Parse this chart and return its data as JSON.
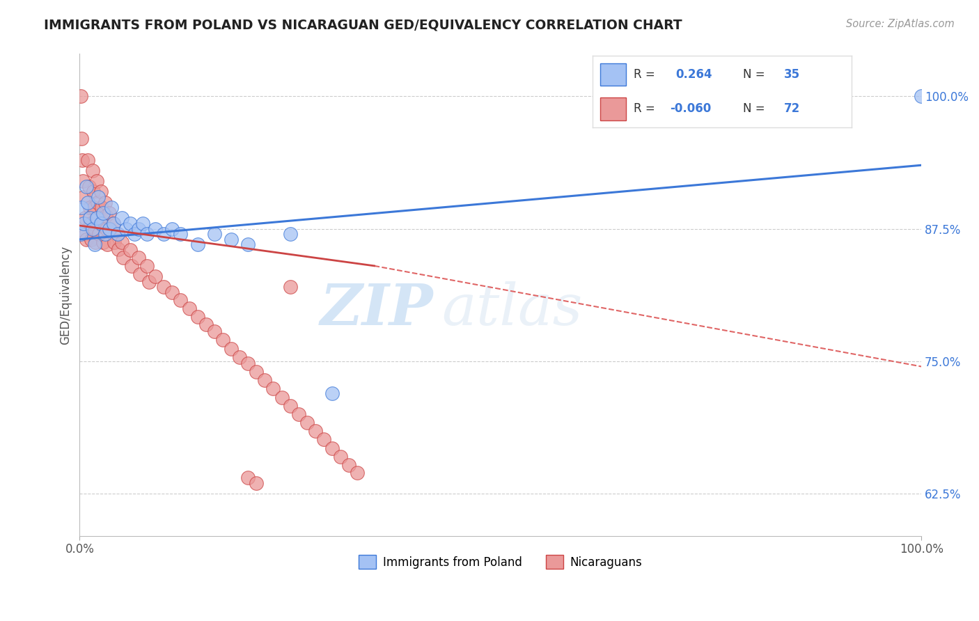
{
  "title": "IMMIGRANTS FROM POLAND VS NICARAGUAN GED/EQUIVALENCY CORRELATION CHART",
  "source_text": "Source: ZipAtlas.com",
  "ylabel": "GED/Equivalency",
  "color_blue": "#a4c2f4",
  "color_pink": "#ea9999",
  "color_blue_dark": "#3c78d8",
  "color_pink_dark": "#cc4444",
  "color_dashed": "#e06666",
  "watermark_zip": "ZIP",
  "watermark_atlas": "atlas",
  "ytick_labels": [
    "62.5%",
    "75.0%",
    "87.5%",
    "100.0%"
  ],
  "ytick_vals": [
    0.625,
    0.75,
    0.875,
    1.0
  ],
  "xtick_labels": [
    "0.0%",
    "100.0%"
  ],
  "xtick_vals": [
    0.0,
    1.0
  ],
  "ymin": 0.585,
  "ymax": 1.04,
  "xmin": 0.0,
  "xmax": 1.0,
  "blue_x": [
    0.001,
    0.002,
    0.005,
    0.008,
    0.01,
    0.012,
    0.015,
    0.018,
    0.02,
    0.022,
    0.025,
    0.028,
    0.03,
    0.035,
    0.038,
    0.04,
    0.045,
    0.05,
    0.055,
    0.06,
    0.065,
    0.07,
    0.075,
    0.08,
    0.09,
    0.1,
    0.11,
    0.12,
    0.14,
    0.16,
    0.18,
    0.2,
    0.25,
    0.3,
    1.0
  ],
  "blue_y": [
    0.87,
    0.895,
    0.88,
    0.915,
    0.9,
    0.885,
    0.875,
    0.86,
    0.885,
    0.905,
    0.88,
    0.89,
    0.87,
    0.875,
    0.895,
    0.88,
    0.87,
    0.885,
    0.875,
    0.88,
    0.87,
    0.875,
    0.88,
    0.87,
    0.875,
    0.87,
    0.875,
    0.87,
    0.86,
    0.87,
    0.865,
    0.86,
    0.87,
    0.72,
    1.0
  ],
  "pink_x": [
    0.001,
    0.002,
    0.003,
    0.004,
    0.005,
    0.006,
    0.007,
    0.008,
    0.01,
    0.011,
    0.012,
    0.013,
    0.014,
    0.015,
    0.016,
    0.017,
    0.018,
    0.019,
    0.02,
    0.021,
    0.022,
    0.023,
    0.025,
    0.026,
    0.027,
    0.028,
    0.03,
    0.031,
    0.032,
    0.033,
    0.035,
    0.036,
    0.04,
    0.041,
    0.045,
    0.046,
    0.05,
    0.052,
    0.06,
    0.062,
    0.07,
    0.072,
    0.08,
    0.082,
    0.09,
    0.1,
    0.11,
    0.12,
    0.13,
    0.14,
    0.15,
    0.16,
    0.17,
    0.18,
    0.19,
    0.2,
    0.21,
    0.22,
    0.23,
    0.24,
    0.25,
    0.26,
    0.27,
    0.28,
    0.29,
    0.25,
    0.3,
    0.31,
    0.32,
    0.33,
    0.2,
    0.21
  ],
  "pink_y": [
    1.0,
    0.96,
    0.94,
    0.92,
    0.905,
    0.885,
    0.87,
    0.865,
    0.94,
    0.915,
    0.895,
    0.88,
    0.865,
    0.93,
    0.91,
    0.895,
    0.875,
    0.862,
    0.92,
    0.9,
    0.885,
    0.87,
    0.91,
    0.895,
    0.878,
    0.862,
    0.9,
    0.887,
    0.875,
    0.86,
    0.89,
    0.875,
    0.88,
    0.862,
    0.87,
    0.856,
    0.862,
    0.848,
    0.855,
    0.84,
    0.848,
    0.832,
    0.84,
    0.825,
    0.83,
    0.82,
    0.815,
    0.808,
    0.8,
    0.792,
    0.785,
    0.778,
    0.77,
    0.762,
    0.754,
    0.748,
    0.74,
    0.732,
    0.724,
    0.716,
    0.708,
    0.7,
    0.692,
    0.684,
    0.676,
    0.82,
    0.668,
    0.66,
    0.652,
    0.645,
    0.64,
    0.635
  ]
}
